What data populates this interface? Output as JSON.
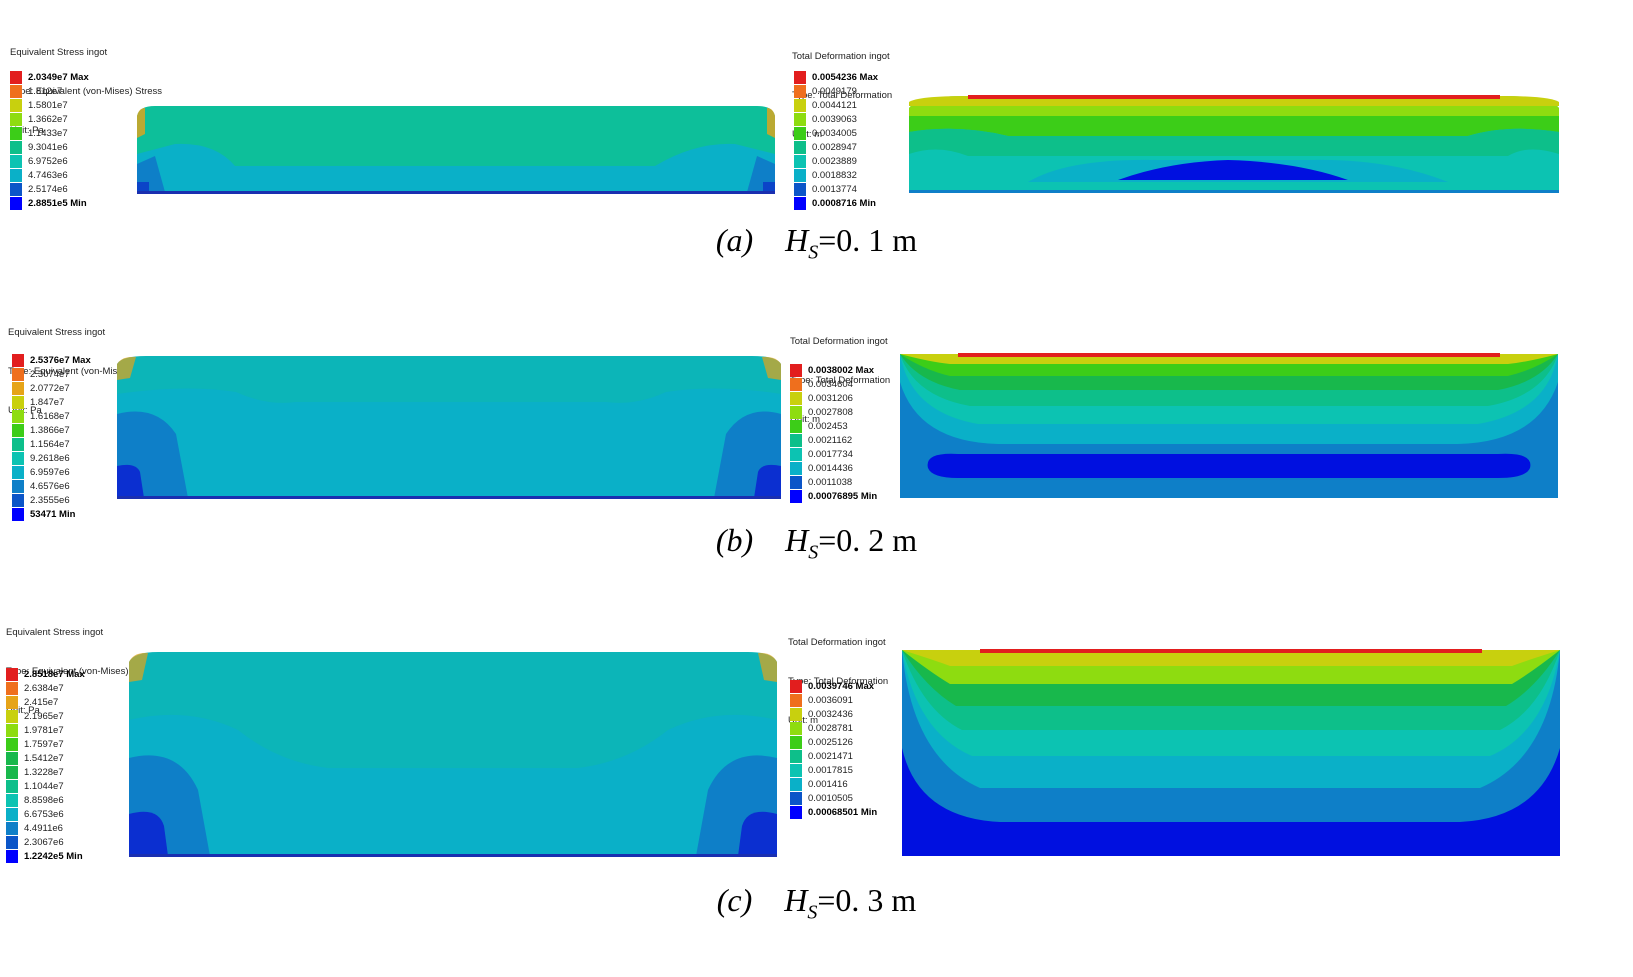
{
  "palette": [
    "#0000ff",
    "#0b55c8",
    "#0e7fc8",
    "#0ab0c8",
    "#0cc3b2",
    "#0dbf8a",
    "#18b84c",
    "#3ccd18",
    "#8edc10",
    "#c8d00e",
    "#e6a418",
    "#ef6f1d",
    "#e21e1e"
  ],
  "rows": [
    {
      "stress": {
        "header": [
          "Equivalent Stress ingot",
          "Type: Equivalent (von-Mises) Stress",
          "Unit: Pa"
        ],
        "legend": [
          "2.0349e7 Max",
          "1.812e7",
          "1.5801e7",
          "1.3662e7",
          "1.1433e7",
          "9.3041e6",
          "6.9752e6",
          "4.7463e6",
          "2.5174e6",
          "2.8851e5 Min"
        ]
      },
      "deformation": {
        "header": [
          "Total Deformation ingot",
          "Type: Total Deformation",
          "Unit: m"
        ],
        "legend": [
          "0.0054236 Max",
          "0.0049179",
          "0.0044121",
          "0.0039063",
          "0.0034005",
          "0.0028947",
          "0.0023889",
          "0.0018832",
          "0.0013774",
          "0.0008716 Min"
        ]
      },
      "caption": {
        "label": "(a)",
        "symbol": "H",
        "sub": "S",
        "value": "=0. 1 m"
      }
    },
    {
      "stress": {
        "header": [
          "Equivalent Stress ingot",
          "Type: Equivalent (von-Mises) Stress",
          "Unit: Pa"
        ],
        "legend": [
          "2.5376e7 Max",
          "2.3074e7",
          "2.0772e7",
          "1.847e7",
          "1.6168e7",
          "1.3866e7",
          "1.1564e7",
          "9.2618e6",
          "6.9597e6",
          "4.6576e6",
          "2.3555e6",
          "53471 Min"
        ]
      },
      "deformation": {
        "header": [
          "Total Deformation ingot",
          "Type: Total Deformation",
          "Unit: m"
        ],
        "legend": [
          "0.0038002 Max",
          "0.0034604",
          "0.0031206",
          "0.0027808",
          "0.002453",
          "0.0021162",
          "0.0017734",
          "0.0014436",
          "0.0011038",
          "0.00076895 Min"
        ]
      },
      "caption": {
        "label": "(b)",
        "symbol": "H",
        "sub": "S",
        "value": "=0. 2 m"
      }
    },
    {
      "stress": {
        "header": [
          "Equivalent Stress ingot",
          "Type: Equivalent (von-Mises) Stress",
          "Unit: Pa"
        ],
        "legend": [
          "2.8518e7 Max",
          "2.6384e7",
          "2.415e7",
          "2.1965e7",
          "1.9781e7",
          "1.7597e7",
          "1.5412e7",
          "1.3228e7",
          "1.1044e7",
          "8.8598e6",
          "6.6753e6",
          "4.4911e6",
          "2.3067e6",
          "1.2242e5 Min"
        ]
      },
      "deformation": {
        "header": [
          "Total Deformation ingot",
          "Type: Total Deformation",
          "Unit: m"
        ],
        "legend": [
          "0.0039746 Max",
          "0.0036091",
          "0.0032436",
          "0.0028781",
          "0.0025126",
          "0.0021471",
          "0.0017815",
          "0.001416",
          "0.0010505",
          "0.00068501 Min"
        ]
      },
      "caption": {
        "label": "(c)",
        "symbol": "H",
        "sub": "S",
        "value": "=0. 3 m"
      }
    }
  ]
}
